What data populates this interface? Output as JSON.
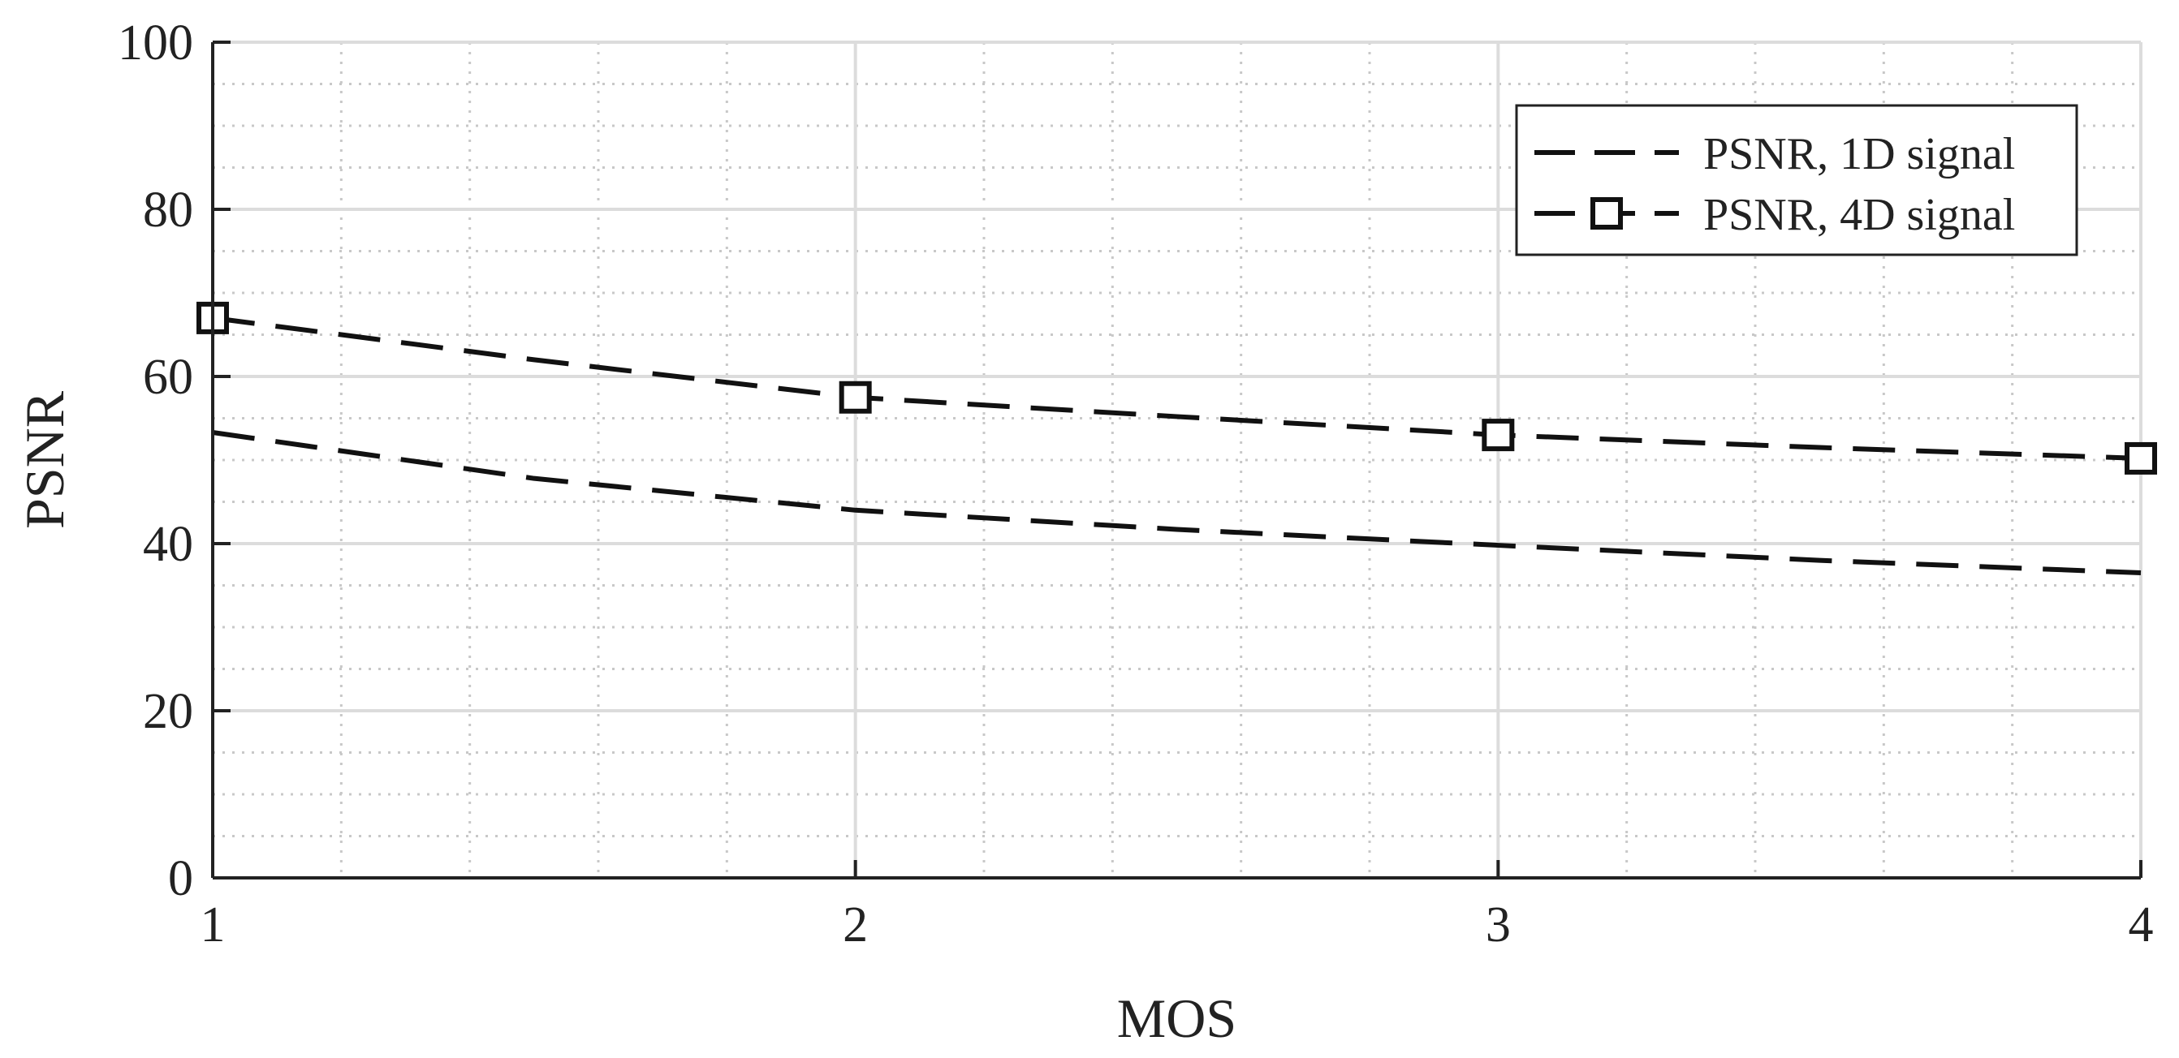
{
  "chart_data": {
    "type": "line",
    "title": "",
    "xlabel": "MOS",
    "ylabel": "PSNR",
    "x": [
      1,
      2,
      3,
      4
    ],
    "xlim": [
      1,
      4
    ],
    "ylim": [
      0,
      100
    ],
    "xticks": [
      "1",
      "2",
      "3",
      "4"
    ],
    "yticks": [
      "0",
      "20",
      "40",
      "60",
      "80",
      "100"
    ],
    "grid": true,
    "minor_grid": true,
    "legend_position": "top-right",
    "series": [
      {
        "name": "PSNR, 1D signal",
        "x": [
          1,
          1.5,
          2,
          2.5,
          3,
          3.5,
          4
        ],
        "values": [
          53.3,
          47.8,
          44.0,
          41.7,
          39.8,
          38.0,
          36.5
        ],
        "line_style": "dashed",
        "marker": "none",
        "color": "#111111"
      },
      {
        "name": "PSNR, 4D signal",
        "x": [
          1,
          1.5,
          2,
          2.5,
          3,
          3.5,
          4
        ],
        "values": [
          67.0,
          62.0,
          57.5,
          55.2,
          53.0,
          51.5,
          50.2
        ],
        "line_style": "dashed",
        "marker": "square",
        "marker_x": [
          1,
          2,
          3,
          4
        ],
        "color": "#111111"
      }
    ]
  }
}
